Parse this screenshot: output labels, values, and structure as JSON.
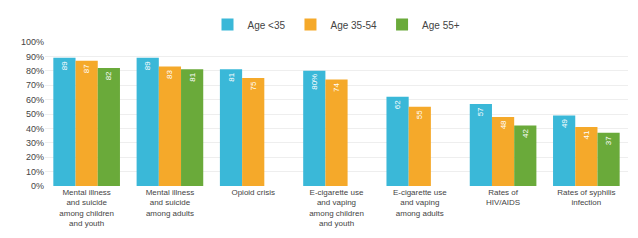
{
  "chart_data": {
    "type": "bar",
    "categories": [
      "Mental illness\nand suicide\namong children\nand youth",
      "Mental illness\nand suicide\namong adults",
      "Opioid crisis",
      "E-cigarette use\nand vaping\namong children\nand youth",
      "E-cigarette use\nand vaping\namong adults",
      "Rates of\nHIV/AIDS",
      "Rates of syphilis\ninfection"
    ],
    "series": [
      {
        "name": "Age <35",
        "color": "#3ab8d8",
        "values": [
          89,
          89,
          81,
          80,
          62,
          57,
          49
        ]
      },
      {
        "name": "Age 35-54",
        "color": "#f5a92a",
        "values": [
          87,
          83,
          75,
          74,
          55,
          48,
          41
        ]
      },
      {
        "name": "Age 55+",
        "color": "#6aaa3a",
        "values": [
          82,
          81,
          null,
          null,
          null,
          42,
          37
        ]
      }
    ],
    "ylim": [
      0,
      100
    ],
    "yticks": [
      {
        "value": 0,
        "label": "0%"
      },
      {
        "value": 10,
        "label": "10%"
      },
      {
        "value": 20,
        "label": "20%"
      },
      {
        "value": 30,
        "label": "30%"
      },
      {
        "value": 40,
        "label": "40%"
      },
      {
        "value": 50,
        "label": "50%"
      },
      {
        "value": 60,
        "label": "60%"
      },
      {
        "value": 70,
        "label": "70%"
      },
      {
        "value": 80,
        "label": "80%"
      },
      {
        "value": 90,
        "label": "90%"
      },
      {
        "value": 100,
        "label": "100%"
      }
    ],
    "grid": true,
    "legend": "top",
    "data_labels": true
  }
}
